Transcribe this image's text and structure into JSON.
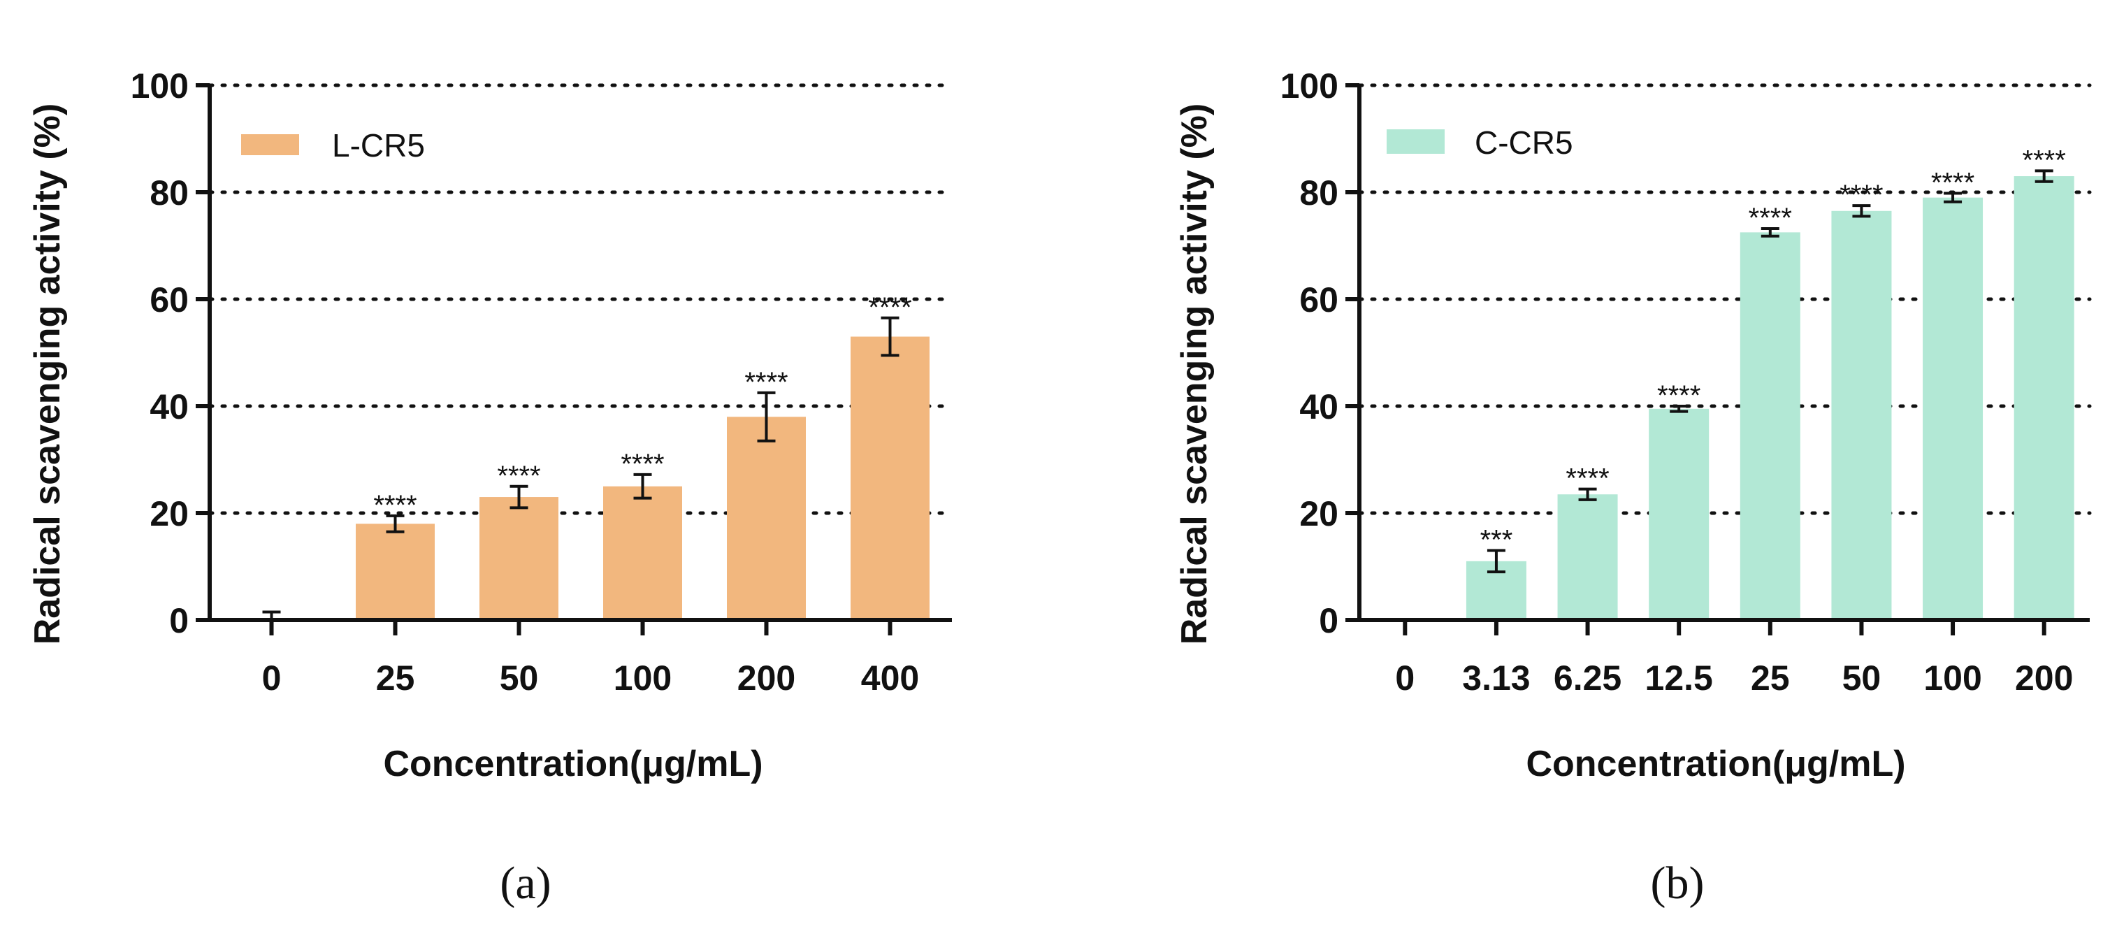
{
  "chart_data": [
    {
      "type": "bar",
      "panel_label": "(a)",
      "series_name": "L-CR5",
      "color": "#f2b77e",
      "categories": [
        "0",
        "25",
        "50",
        "100",
        "200",
        "400"
      ],
      "values": [
        0,
        18,
        23,
        25,
        38,
        53
      ],
      "errors": [
        1.5,
        1.5,
        2,
        2.2,
        4.5,
        3.5
      ],
      "significance": [
        "",
        "****",
        "****",
        "****",
        "****",
        "****"
      ],
      "xlabel": "Concentration(μg/mL)",
      "ylabel": "Radical scavenging activity (%)",
      "ylim": [
        0,
        100
      ],
      "yticks": [
        "0",
        "20",
        "40",
        "60",
        "80",
        "100"
      ],
      "gridlines": [
        20,
        40,
        60,
        80,
        100
      ],
      "legend": "top-left"
    },
    {
      "type": "bar",
      "panel_label": "(b)",
      "series_name": "C-CR5",
      "color": "#b2e8d5",
      "categories": [
        "0",
        "3.13",
        "6.25",
        "12.5",
        "25",
        "50",
        "100",
        "200"
      ],
      "values": [
        0,
        11,
        23.5,
        39.5,
        72.5,
        76.5,
        79,
        83
      ],
      "errors": [
        0,
        2,
        1,
        0.5,
        0.7,
        1,
        0.8,
        1
      ],
      "significance": [
        "",
        "***",
        "****",
        "****",
        "****",
        "****",
        "****",
        "****"
      ],
      "xlabel": "Concentration(μg/mL)",
      "ylabel": "Radical scavenging activity (%)",
      "ylim": [
        0,
        100
      ],
      "yticks": [
        "0",
        "20",
        "40",
        "60",
        "80",
        "100"
      ],
      "gridlines": [
        20,
        40,
        60,
        80,
        100
      ],
      "legend": "top-left"
    }
  ]
}
